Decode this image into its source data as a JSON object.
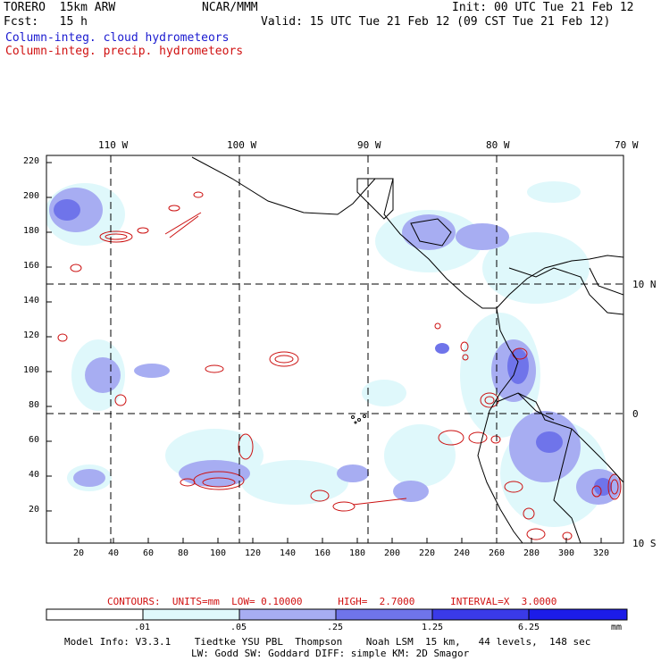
{
  "header": {
    "model": "TORERO  15km ARW",
    "org": "NCAR/MMM",
    "init": "Init: 00 UTC Tue 21 Feb 12",
    "fcst": "Fcst:   15 h",
    "valid": "Valid: 15 UTC Tue 21 Feb 12 (09 CST Tue 21 Feb 12)",
    "line_blue": "Column-integ. cloud hydrometeors",
    "line_red": "Column-integ. precip. hydrometeors"
  },
  "map": {
    "lon_labels": [
      "110 W",
      "100 W",
      "90 W",
      "80 W",
      "70 W"
    ],
    "lat_labels": [
      "10 N",
      "0",
      "10 S"
    ],
    "y_ticks": [
      "220",
      "200",
      "180",
      "160",
      "140",
      "120",
      "100",
      "80",
      "60",
      "40",
      "20"
    ],
    "x_ticks": [
      "20",
      "40",
      "60",
      "80",
      "100",
      "120",
      "140",
      "160",
      "180",
      "200",
      "220",
      "240",
      "260",
      "280",
      "300",
      "320"
    ],
    "colors": {
      "cloud_light": "#dff8fb",
      "cloud_mid": "#a7adf2",
      "cloud_dark": "#6f74ea",
      "cloud_deep": "#3a3ae8",
      "precip_contour": "#cc1111",
      "coast": "#000000",
      "grid": "#000000"
    }
  },
  "contour_info": "CONTOURS:  UNITS=mm  LOW= 0.10000      HIGH=  2.7000      INTERVAL=X  3.0000",
  "colorbar": {
    "labels": [
      ".01",
      ".05",
      ".25",
      "1.25",
      "6.25"
    ],
    "unit": "mm",
    "colors": [
      "#ffffff",
      "#dff8fb",
      "#a7adf2",
      "#6f74ea",
      "#3a3ae8",
      "#1c1ce8"
    ]
  },
  "footer": {
    "line1": "Model Info: V3.3.1    Tiedtke YSU PBL  Thompson    Noah LSM  15 km,   44 levels,  148 sec",
    "line2": "LW: Godd SW: Goddard DIFF: simple KM: 2D Smagor"
  }
}
